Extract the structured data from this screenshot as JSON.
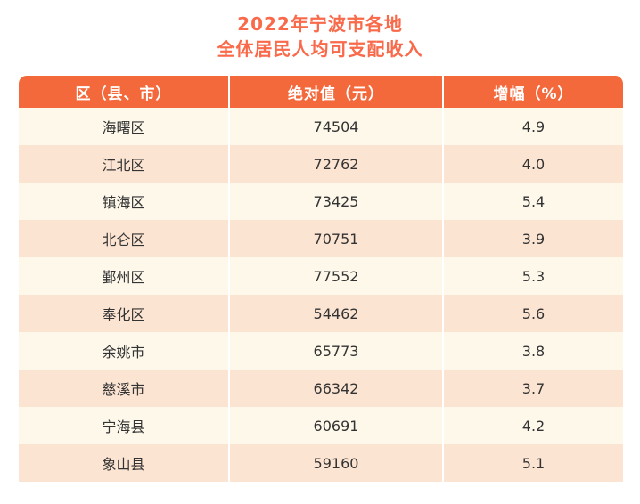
{
  "title": {
    "line1": "2022年宁波市各地",
    "line2": "全体居民人均可支配收入"
  },
  "table": {
    "columns": [
      "区（县、市）",
      "绝对值（元）",
      "增幅（%）"
    ],
    "rows": [
      {
        "region": "海曙区",
        "value": "74504",
        "growth": "4.9"
      },
      {
        "region": "江北区",
        "value": "72762",
        "growth": "4.0"
      },
      {
        "region": "镇海区",
        "value": "73425",
        "growth": "5.4"
      },
      {
        "region": "北仑区",
        "value": "70751",
        "growth": "3.9"
      },
      {
        "region": "鄞州区",
        "value": "77552",
        "growth": "5.3"
      },
      {
        "region": "奉化区",
        "value": "54462",
        "growth": "5.6"
      },
      {
        "region": "余姚市",
        "value": "65773",
        "growth": "3.8"
      },
      {
        "region": "慈溪市",
        "value": "66342",
        "growth": "3.7"
      },
      {
        "region": "宁海县",
        "value": "60691",
        "growth": "4.2"
      },
      {
        "region": "象山县",
        "value": "59160",
        "growth": "5.1"
      }
    ]
  },
  "colors": {
    "header_orange": "#F4693B",
    "title_orange": "#F96A4B",
    "row_cream": "#FEF8EB",
    "row_peach": "#FCE4D2",
    "text_dark": "#333333",
    "header_text": "#FFFFFF"
  },
  "chart_data": {
    "type": "table",
    "title": "2022年宁波市各地全体居民人均可支配收入",
    "columns": [
      "区（县、市）",
      "绝对值（元）",
      "增幅（%）"
    ],
    "categories": [
      "海曙区",
      "江北区",
      "镇海区",
      "北仑区",
      "鄞州区",
      "奉化区",
      "余姚市",
      "慈溪市",
      "宁海县",
      "象山县"
    ],
    "series": [
      {
        "name": "绝对值（元）",
        "values": [
          74504,
          72762,
          73425,
          70751,
          77552,
          54462,
          65773,
          66342,
          60691,
          59160
        ]
      },
      {
        "name": "增幅（%）",
        "values": [
          4.9,
          4.0,
          5.4,
          3.9,
          5.3,
          5.6,
          3.8,
          3.7,
          4.2,
          5.1
        ]
      }
    ],
    "layout": {
      "header_background": "#F4693B",
      "alternating_rows": true,
      "grid": false,
      "legend": "none"
    }
  }
}
